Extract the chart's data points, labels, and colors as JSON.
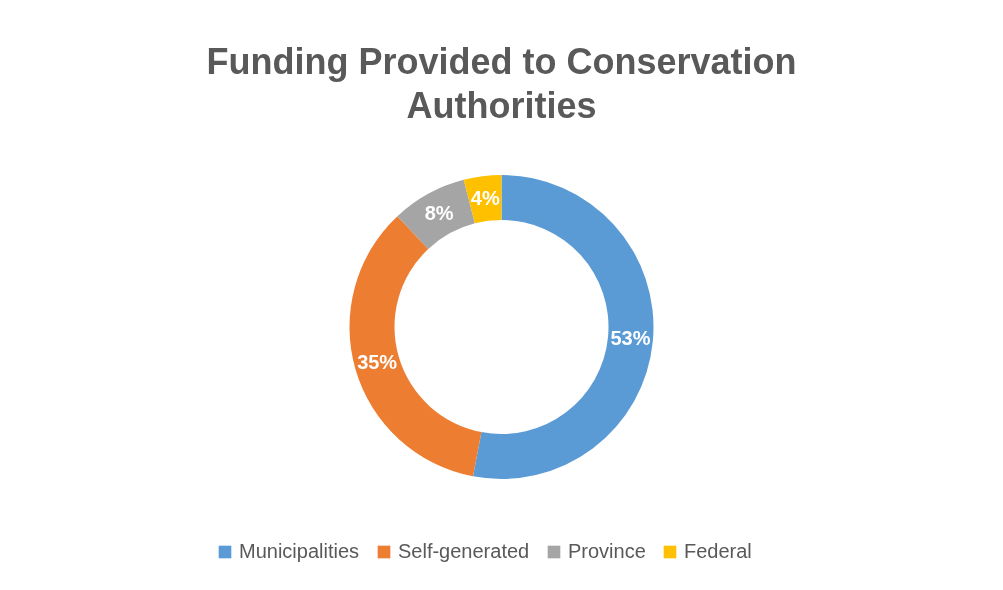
{
  "chart_data": {
    "type": "donut",
    "title": "Funding Provided to Conservation Authorities",
    "categories": [
      "Municipalities",
      "Self-generated",
      "Province",
      "Federal"
    ],
    "values": [
      53,
      35,
      8,
      4
    ],
    "value_labels": [
      "53%",
      "35%",
      "8%",
      "4%"
    ],
    "colors": [
      "#5b9bd5",
      "#ed7d31",
      "#a5a5a5",
      "#ffc000"
    ],
    "legend": "bottom"
  }
}
